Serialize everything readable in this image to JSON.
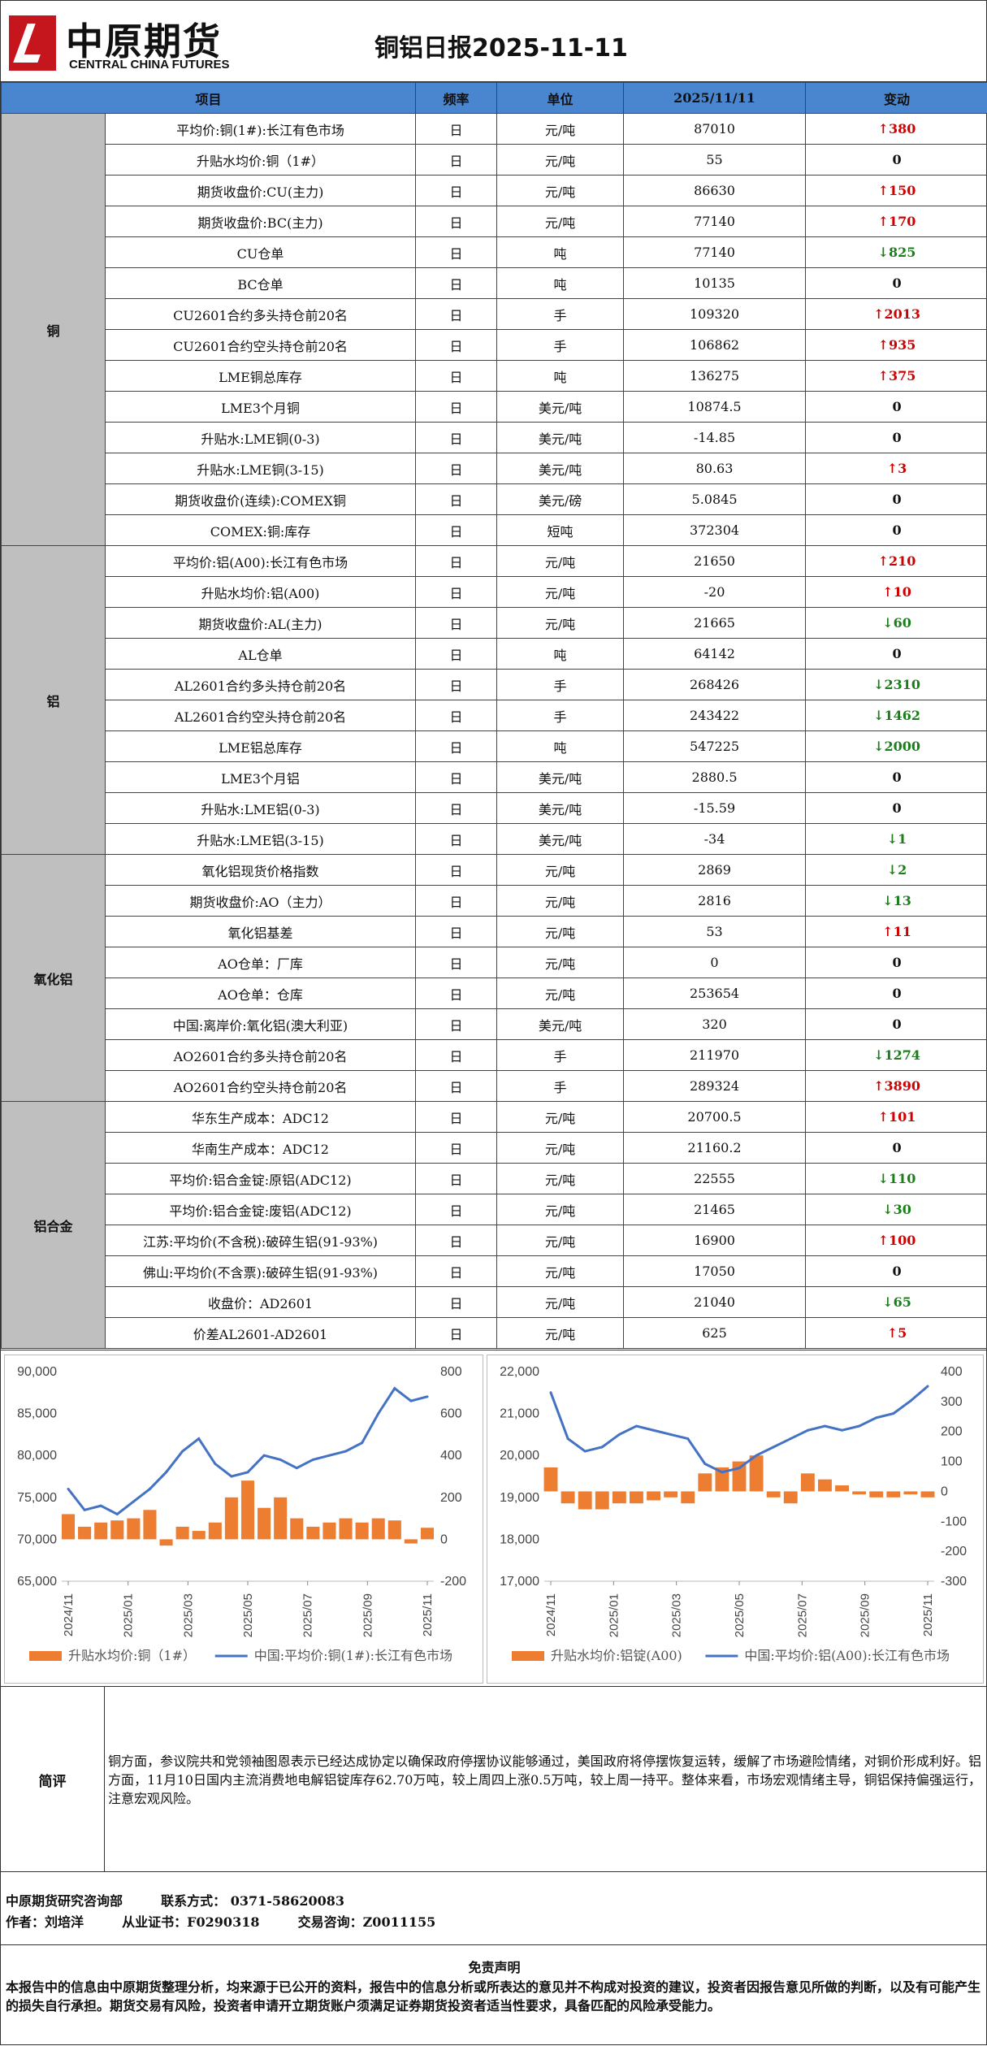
{
  "header": {
    "logo_cn": "中原期货",
    "logo_en": "CENTRAL CHINA FUTURES",
    "title": "铜铝日报2025-11-11"
  },
  "table": {
    "columns": [
      "项目",
      "频率",
      "单位",
      "2025/11/11",
      "变动"
    ],
    "groups": [
      {
        "name": "铜",
        "rows": [
          [
            "平均价:铜(1#):长江有色市场",
            "日",
            "元/吨",
            "87010",
            "↑380",
            "up"
          ],
          [
            "升贴水均价:铜（1#）",
            "日",
            "元/吨",
            "55",
            "0",
            "zero"
          ],
          [
            "期货收盘价:CU(主力)",
            "日",
            "元/吨",
            "86630",
            "↑150",
            "up"
          ],
          [
            "期货收盘价:BC(主力)",
            "日",
            "元/吨",
            "77140",
            "↑170",
            "up"
          ],
          [
            "CU仓单",
            "日",
            "吨",
            "77140",
            "↓825",
            "dn"
          ],
          [
            "BC仓单",
            "日",
            "吨",
            "10135",
            "0",
            "zero"
          ],
          [
            "CU2601合约多头持仓前20名",
            "日",
            "手",
            "109320",
            "↑2013",
            "up"
          ],
          [
            "CU2601合约空头持仓前20名",
            "日",
            "手",
            "106862",
            "↑935",
            "up"
          ],
          [
            "LME铜总库存",
            "日",
            "吨",
            "136275",
            "↑375",
            "up"
          ],
          [
            "LME3个月铜",
            "日",
            "美元/吨",
            "10874.5",
            "0",
            "zero"
          ],
          [
            "升贴水:LME铜(0-3)",
            "日",
            "美元/吨",
            "-14.85",
            "0",
            "zero"
          ],
          [
            "升贴水:LME铜(3-15)",
            "日",
            "美元/吨",
            "80.63",
            "↑3",
            "up"
          ],
          [
            "期货收盘价(连续):COMEX铜",
            "日",
            "美元/磅",
            "5.0845",
            "0",
            "zero"
          ],
          [
            "COMEX:铜:库存",
            "日",
            "短吨",
            "372304",
            "0",
            "zero"
          ]
        ]
      },
      {
        "name": "铝",
        "rows": [
          [
            "平均价:铝(A00):长江有色市场",
            "日",
            "元/吨",
            "21650",
            "↑210",
            "up"
          ],
          [
            "升贴水均价:铝(A00)",
            "日",
            "元/吨",
            "-20",
            "↑10",
            "up"
          ],
          [
            "期货收盘价:AL(主力)",
            "日",
            "元/吨",
            "21665",
            "↓60",
            "dn"
          ],
          [
            "AL仓单",
            "日",
            "吨",
            "64142",
            "0",
            "zero"
          ],
          [
            "AL2601合约多头持仓前20名",
            "日",
            "手",
            "268426",
            "↓2310",
            "dn"
          ],
          [
            "AL2601合约空头持仓前20名",
            "日",
            "手",
            "243422",
            "↓1462",
            "dn"
          ],
          [
            "LME铝总库存",
            "日",
            "吨",
            "547225",
            "↓2000",
            "dn"
          ],
          [
            "LME3个月铝",
            "日",
            "美元/吨",
            "2880.5",
            "0",
            "zero"
          ],
          [
            "升贴水:LME铝(0-3)",
            "日",
            "美元/吨",
            "-15.59",
            "0",
            "zero"
          ],
          [
            "升贴水:LME铝(3-15)",
            "日",
            "美元/吨",
            "-34",
            "↓1",
            "dn"
          ]
        ]
      },
      {
        "name": "氧化铝",
        "rows": [
          [
            "氧化铝现货价格指数",
            "日",
            "元/吨",
            "2869",
            "↓2",
            "dn"
          ],
          [
            "期货收盘价:AO（主力）",
            "日",
            "元/吨",
            "2816",
            "↓13",
            "dn"
          ],
          [
            "氧化铝基差",
            "日",
            "元/吨",
            "53",
            "↑11",
            "up"
          ],
          [
            "AO仓单：厂库",
            "日",
            "元/吨",
            "0",
            "0",
            "zero"
          ],
          [
            "AO仓单：仓库",
            "日",
            "元/吨",
            "253654",
            "0",
            "zero"
          ],
          [
            "中国:离岸价:氧化铝(澳大利亚)",
            "日",
            "美元/吨",
            "320",
            "0",
            "zero"
          ],
          [
            "AO2601合约多头持仓前20名",
            "日",
            "手",
            "211970",
            "↓1274",
            "dn"
          ],
          [
            "AO2601合约空头持仓前20名",
            "日",
            "手",
            "289324",
            "↑3890",
            "up"
          ]
        ]
      },
      {
        "name": "铝合金",
        "rows": [
          [
            "华东生产成本：ADC12",
            "日",
            "元/吨",
            "20700.5",
            "↑101",
            "up"
          ],
          [
            "华南生产成本：ADC12",
            "日",
            "元/吨",
            "21160.2",
            "0",
            "zero"
          ],
          [
            "平均价:铝合金锭:原铝(ADC12)",
            "日",
            "元/吨",
            "22555",
            "↓110",
            "dn"
          ],
          [
            "平均价:铝合金锭:废铝(ADC12)",
            "日",
            "元/吨",
            "21465",
            "↓30",
            "dn"
          ],
          [
            "江苏:平均价(不含税):破碎生铝(91-93%)",
            "日",
            "元/吨",
            "16900",
            "↑100",
            "up"
          ],
          [
            "佛山:平均价(不含票):破碎生铝(91-93%)",
            "日",
            "元/吨",
            "17050",
            "0",
            "zero"
          ],
          [
            "收盘价：AD2601",
            "日",
            "元/吨",
            "21040",
            "↓65",
            "dn"
          ],
          [
            "价差AL2601-AD2601",
            "日",
            "元/吨",
            "625",
            "↑5",
            "up"
          ]
        ]
      }
    ]
  },
  "charts": {
    "copper": {
      "left_ticks": [
        "90,000",
        "85,000",
        "80,000",
        "75,000",
        "70,000",
        "65,000"
      ],
      "right_ticks": [
        "800",
        "600",
        "400",
        "200",
        "0",
        "-200"
      ],
      "x_ticks": [
        "2024/11",
        "2025/01",
        "2025/03",
        "2025/05",
        "2025/07",
        "2025/09",
        "2025/11"
      ],
      "legend_bar": "升贴水均价:铜（1#）",
      "legend_line": "中国:平均价:铜(1#):长江有色市场"
    },
    "aluminum": {
      "left_ticks": [
        "22,000",
        "21,000",
        "20,000",
        "19,000",
        "18,000",
        "17,000"
      ],
      "right_ticks": [
        "400",
        "300",
        "200",
        "100",
        "0",
        "-100",
        "-200",
        "-300"
      ],
      "x_ticks": [
        "2024/11",
        "2025/01",
        "2025/03",
        "2025/05",
        "2025/07",
        "2025/09",
        "2025/11"
      ],
      "legend_bar": "升贴水均价:铝锭(A00)",
      "legend_line": "中国:平均价:铝(A00):长江有色市场"
    },
    "colors": {
      "bar": "#ed7d31",
      "line": "#4472c4"
    }
  },
  "chart_data": [
    {
      "type": "line",
      "title": "",
      "series": [
        {
          "name": "中国:平均价:铜(1#):长江有色市场",
          "values": [
            76000,
            73500,
            74000,
            73000,
            74500,
            76000,
            78000,
            80500,
            82000,
            79000,
            77500,
            78000,
            80000,
            79500,
            78500,
            79500,
            80000,
            80500,
            81500,
            85000,
            88000,
            86500,
            87010
          ]
        },
        {
          "name": "升贴水均价:铜（1#）",
          "values": [
            120,
            60,
            80,
            90,
            100,
            140,
            -30,
            60,
            40,
            80,
            200,
            280,
            150,
            200,
            100,
            60,
            80,
            100,
            80,
            100,
            90,
            -20,
            55
          ]
        }
      ],
      "ylim": [
        65000,
        90000
      ],
      "y2lim": [
        -200,
        800
      ]
    },
    {
      "type": "line",
      "title": "",
      "series": [
        {
          "name": "中国:平均价:铝(A00):长江有色市场",
          "values": [
            21500,
            20400,
            20100,
            20200,
            20500,
            20700,
            20600,
            20500,
            20400,
            19800,
            19600,
            19700,
            20000,
            20200,
            20400,
            20600,
            20700,
            20600,
            20700,
            20900,
            21000,
            21300,
            21650
          ]
        },
        {
          "name": "升贴水均价:铝锭(A00)",
          "values": [
            80,
            -40,
            -60,
            -60,
            -40,
            -40,
            -30,
            -20,
            -40,
            60,
            80,
            100,
            120,
            -20,
            -40,
            60,
            40,
            20,
            -10,
            -20,
            -20,
            -10,
            -20
          ]
        }
      ],
      "ylim": [
        17000,
        22000
      ],
      "y2lim": [
        -300,
        400
      ]
    }
  ],
  "summary": {
    "label": "简评",
    "text": "铜方面，参议院共和党领袖图恩表示已经达成协定以确保政府停摆协议能够通过，美国政府将停摆恢复运转，缓解了市场避险情绪，对铜价形成利好。铝方面，11月10日国内主流消费地电解铝锭库存62.70万吨，较上周四上涨0.5万吨，较上周一持平。整体来看，市场宏观情绪主导，铜铝保持偏强运行，注意宏观风险。"
  },
  "footer": {
    "dept": "中原期货研究咨询部",
    "contact": "联系方式：  0371-58620083",
    "author": "作者：刘培洋",
    "cert": "从业证书：F0290318",
    "consult": "交易咨询：Z0011155"
  },
  "disclaimer": {
    "title": "免责声明",
    "text": "本报告中的信息由中原期货整理分析，均来源于已公开的资料，报告中的信息分析或所表达的意见并不构成对投资的建议，投资者因报告意见所做的判断，以及有可能产生的损失自行承担。期货交易有风险，投资者申请开立期货账户须满足证券期货投资者适当性要求，具备匹配的风险承受能力。"
  }
}
